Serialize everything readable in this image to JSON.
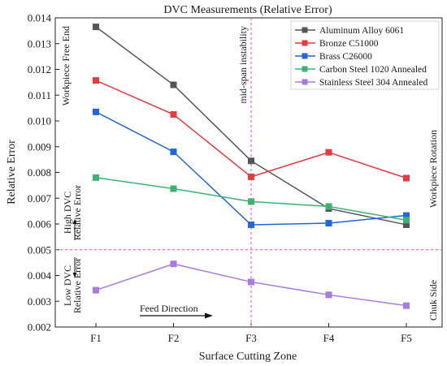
{
  "chart_data": {
    "type": "line",
    "title": "DVC Measurements (Relative Error)",
    "xlabel": "Surface Cutting Zone",
    "ylabel": "Relative Error",
    "categories": [
      "F1",
      "F2",
      "F3",
      "F4",
      "F5"
    ],
    "ylim": [
      0.002,
      0.014
    ],
    "yticks": [
      "0.002",
      "0.003",
      "0.004",
      "0.005",
      "0.006",
      "0.007",
      "0.008",
      "0.009",
      "0.010",
      "0.011",
      "0.012",
      "0.013",
      "0.014"
    ],
    "grid": false,
    "legend_position": "top-right",
    "series": [
      {
        "name": "Aluminum Alloy 6061",
        "color": "#555555",
        "values": [
          0.01365,
          0.0114,
          0.00845,
          0.0066,
          0.00597
        ]
      },
      {
        "name": "Bronze C51000",
        "color": "#e8393f",
        "values": [
          0.01157,
          0.01025,
          0.00783,
          0.00878,
          0.00778
        ]
      },
      {
        "name": "Brass C26000",
        "color": "#2266d8",
        "values": [
          0.01035,
          0.0088,
          0.00597,
          0.00603,
          0.00633
        ]
      },
      {
        "name": "Carbon Steel 1020 Annealed",
        "color": "#3cb371",
        "values": [
          0.0078,
          0.00737,
          0.00687,
          0.00668,
          0.00615
        ]
      },
      {
        "name": "Stainless Steel 304 Annealed",
        "color": "#a97be0",
        "values": [
          0.00343,
          0.00445,
          0.00375,
          0.00325,
          0.00283
        ]
      }
    ],
    "reference_lines": {
      "horizontal": {
        "value": 0.005,
        "color": "#e040e0"
      },
      "vertical": {
        "category": "F3",
        "label": "mid-span instability",
        "color": "#e040e0"
      }
    },
    "annotations": {
      "left_top": "Workpiece Free End",
      "right_mid": "Workpiece Rotation",
      "right_bottom": "Chuk Side",
      "high_line1": "High DVC",
      "high_line2": "Relative Error",
      "low_line1": "Low DVC",
      "low_line2": "Relative Error",
      "feed_direction": "Feed Direction"
    }
  }
}
